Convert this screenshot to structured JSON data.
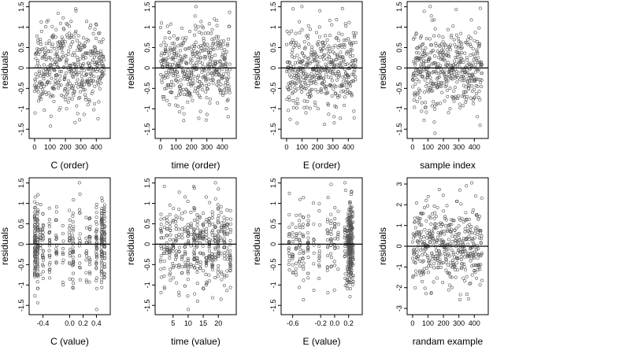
{
  "figure": {
    "panels_note": "",
    "point_color": "#555555"
  },
  "chart_data": [
    {
      "type": "scatter",
      "xlabel": "C (order)",
      "ylabel": "residuals",
      "xlim": [
        -15,
        470
      ],
      "ylim": [
        -1.65,
        1.55
      ],
      "x_ticks": [
        0,
        100,
        200,
        300,
        400
      ],
      "y_ticks": [
        -1.5,
        -1.0,
        -0.5,
        0.0,
        0.5,
        1.0,
        1.5
      ],
      "hline": 0,
      "grid": false,
      "n_points": 450,
      "x_mode": "index",
      "y_sd": 0.5,
      "seed": 11
    },
    {
      "type": "scatter",
      "xlabel": "time (order)",
      "ylabel": "residuals",
      "xlim": [
        -15,
        470
      ],
      "ylim": [
        -1.65,
        1.55
      ],
      "x_ticks": [
        0,
        100,
        200,
        300,
        400
      ],
      "y_ticks": [
        -1.5,
        -1.0,
        -0.5,
        0.0,
        0.5,
        1.0,
        1.5
      ],
      "hline": 0,
      "grid": false,
      "n_points": 450,
      "x_mode": "index",
      "y_sd": 0.5,
      "seed": 23
    },
    {
      "type": "scatter",
      "xlabel": "E (order)",
      "ylabel": "residuals",
      "xlim": [
        -15,
        470
      ],
      "ylim": [
        -1.65,
        1.55
      ],
      "x_ticks": [
        0,
        100,
        200,
        300,
        400
      ],
      "y_ticks": [
        -1.5,
        -1.0,
        -0.5,
        0.0,
        0.5,
        1.0,
        1.5
      ],
      "hline": 0,
      "grid": false,
      "n_points": 450,
      "x_mode": "index",
      "y_sd": 0.5,
      "seed": 37
    },
    {
      "type": "scatter",
      "xlabel": "sample index",
      "ylabel": "residuals",
      "xlim": [
        -15,
        470
      ],
      "ylim": [
        -1.65,
        1.55
      ],
      "x_ticks": [
        0,
        100,
        200,
        300,
        400
      ],
      "y_ticks": [
        -1.5,
        -1.0,
        -0.5,
        0.0,
        0.5,
        1.0,
        1.5
      ],
      "hline": 0,
      "grid": false,
      "n_points": 450,
      "x_mode": "index",
      "y_sd": 0.5,
      "seed": 41
    },
    {
      "type": "scatter",
      "xlabel": "C (value)",
      "ylabel": "residuals",
      "xlim": [
        -0.56,
        0.56
      ],
      "ylim": [
        -1.65,
        1.55
      ],
      "x_ticks": [
        -0.4,
        0.0,
        0.2,
        0.4
      ],
      "x_tick_labels": [
        "-0.4",
        "0.0",
        "0.2",
        "0.4"
      ],
      "y_ticks": [
        -1.5,
        -1.0,
        -0.5,
        0.0,
        0.5,
        1.0,
        1.5
      ],
      "hline": 0,
      "grid": false,
      "n_points": 450,
      "x_mode": "levels",
      "x_levels": [
        -0.52,
        -0.48,
        -0.44,
        -0.4,
        -0.3,
        -0.2,
        -0.1,
        0.0,
        0.05,
        0.15,
        0.25,
        0.3,
        0.4,
        0.48,
        0.52
      ],
      "level_weights": [
        3,
        3,
        1,
        1,
        1,
        1,
        1,
        1,
        1,
        1,
        1,
        1,
        2,
        3,
        2
      ],
      "y_sd": 0.5,
      "seed": 53
    },
    {
      "type": "scatter",
      "xlabel": "time (value)",
      "ylabel": "residuals",
      "xlim": [
        0.1,
        24.9
      ],
      "ylim": [
        -1.65,
        1.55
      ],
      "x_ticks": [
        5,
        10,
        15,
        20
      ],
      "y_ticks": [
        -1.5,
        -1.0,
        -0.5,
        0.0,
        0.5,
        1.0,
        1.5
      ],
      "hline": 0,
      "grid": false,
      "n_points": 450,
      "x_mode": "levels",
      "x_levels": [
        1,
        2,
        3,
        4,
        5,
        6,
        7,
        8,
        9,
        10,
        11,
        12,
        13,
        14,
        15,
        16,
        17,
        18,
        19,
        20,
        21,
        22,
        23,
        24
      ],
      "level_weights": [
        1,
        1,
        1,
        1,
        1,
        1,
        1,
        1,
        1,
        1,
        1,
        2,
        1,
        1,
        1,
        1,
        1,
        1,
        1,
        1,
        1,
        1,
        1,
        1
      ],
      "y_sd": 0.5,
      "seed": 67
    },
    {
      "type": "scatter",
      "xlabel": "E (value)",
      "ylabel": "residuals",
      "xlim": [
        -0.72,
        0.35
      ],
      "ylim": [
        -1.65,
        1.55
      ],
      "x_ticks": [
        -0.6,
        -0.2,
        0.0,
        0.2
      ],
      "x_tick_labels": [
        "-0.6",
        "-0.2",
        "0.0",
        "0.2"
      ],
      "y_ticks": [
        -1.5,
        -1.0,
        -0.5,
        0.0,
        0.5,
        1.0,
        1.5
      ],
      "hline": 0,
      "grid": false,
      "n_points": 450,
      "x_mode": "levels",
      "x_levels": [
        -0.65,
        -0.6,
        -0.55,
        -0.5,
        -0.45,
        -0.38,
        -0.3,
        -0.22,
        -0.1,
        -0.05,
        0.0,
        0.05,
        0.15,
        0.18,
        0.2,
        0.22,
        0.24,
        0.26
      ],
      "level_weights": [
        1,
        1,
        1,
        1,
        1,
        1,
        1,
        0.5,
        1,
        1,
        1,
        0.5,
        1,
        2,
        4,
        6,
        4,
        2
      ],
      "y_sd": 0.5,
      "seed": 79
    },
    {
      "type": "scatter",
      "xlabel": "randam example",
      "ylabel": "residuals",
      "xlim": [
        -15,
        470
      ],
      "ylim": [
        -3.15,
        3.15
      ],
      "x_ticks": [
        0,
        100,
        200,
        300,
        400
      ],
      "y_ticks": [
        -3,
        -2,
        -1,
        0,
        1,
        2,
        3
      ],
      "hline": 0,
      "grid": false,
      "n_points": 450,
      "x_mode": "index",
      "y_sd": 1.0,
      "seed": 97
    }
  ]
}
